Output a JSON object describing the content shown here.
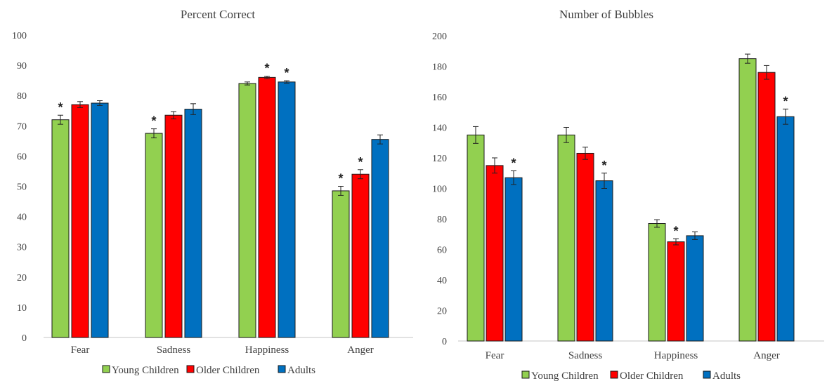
{
  "colors": {
    "young_children": "#92d050",
    "older_children": "#ff0000",
    "adults": "#0070c0"
  },
  "chart_data": [
    {
      "type": "bar",
      "title": "Percent Correct",
      "categories": [
        "Fear",
        "Sadness",
        "Happiness",
        "Anger"
      ],
      "ylim": [
        0,
        100
      ],
      "yticks": [
        "0",
        "10",
        "20",
        "30",
        "40",
        "50",
        "60",
        "70",
        "80",
        "90",
        "100"
      ],
      "series": [
        {
          "name": "Young Children",
          "values": [
            72,
            67.5,
            84,
            48.5
          ],
          "errors": [
            1.5,
            1.5,
            0.5,
            1.5
          ],
          "asterisk": [
            true,
            true,
            false,
            true
          ]
        },
        {
          "name": "Older Children",
          "values": [
            77,
            73.5,
            86,
            54
          ],
          "errors": [
            1,
            1.2,
            0.4,
            1.5
          ],
          "asterisk": [
            false,
            false,
            true,
            true
          ]
        },
        {
          "name": "Adults",
          "values": [
            77.5,
            75.5,
            84.5,
            65.5
          ],
          "errors": [
            0.8,
            1.8,
            0.4,
            1.5
          ],
          "asterisk": [
            false,
            false,
            true,
            false
          ]
        }
      ],
      "legend": "bottom",
      "grid": false
    },
    {
      "type": "bar",
      "title": "Number of Bubbles",
      "categories": [
        "Fear",
        "Sadness",
        "Happiness",
        "Anger"
      ],
      "ylim": [
        0,
        200
      ],
      "yticks": [
        "0",
        "20",
        "40",
        "60",
        "80",
        "100",
        "120",
        "140",
        "160",
        "180",
        "200"
      ],
      "series": [
        {
          "name": "Young Children",
          "values": [
            135,
            135,
            77,
            185
          ],
          "errors": [
            5.5,
            5,
            2.5,
            3
          ],
          "asterisk": [
            false,
            false,
            false,
            false
          ]
        },
        {
          "name": "Older Children",
          "values": [
            115,
            123,
            65,
            176
          ],
          "errors": [
            5,
            4,
            2,
            4.5
          ],
          "asterisk": [
            false,
            false,
            true,
            false
          ]
        },
        {
          "name": "Adults",
          "values": [
            107,
            105,
            69,
            147
          ],
          "errors": [
            4.5,
            5,
            2.5,
            5
          ],
          "asterisk": [
            true,
            true,
            false,
            true
          ]
        }
      ],
      "legend": "bottom",
      "grid": false
    }
  ]
}
